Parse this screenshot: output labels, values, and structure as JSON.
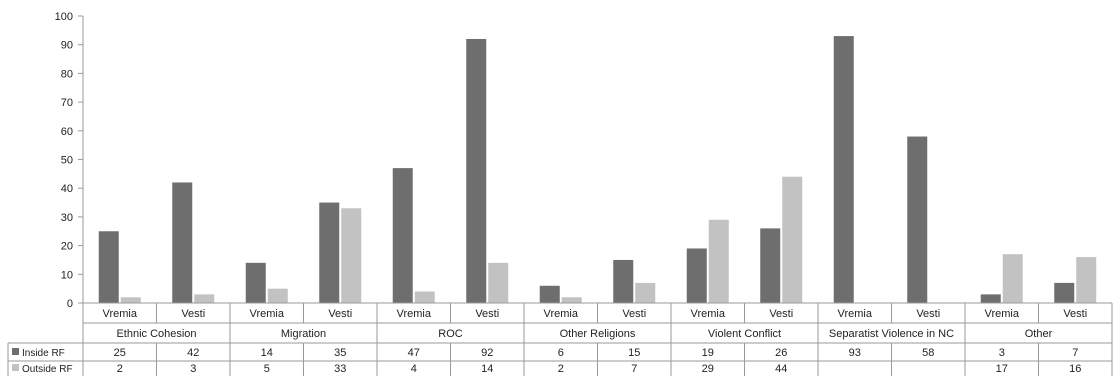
{
  "chart_data": {
    "type": "bar",
    "title": "",
    "xlabel": "",
    "ylabel": "",
    "ylim": [
      0,
      100
    ],
    "yticks": [
      0,
      10,
      20,
      30,
      40,
      50,
      60,
      70,
      80,
      90,
      100
    ],
    "grid": false,
    "legend": "table-rows",
    "groups": [
      {
        "label": "Ethnic Cohesion",
        "categories": [
          "Vremia",
          "Vesti"
        ]
      },
      {
        "label": "Migration",
        "categories": [
          "Vremia",
          "Vesti"
        ]
      },
      {
        "label": "ROC",
        "categories": [
          "Vremia",
          "Vesti"
        ]
      },
      {
        "label": "Other Religions",
        "categories": [
          "Vremia",
          "Vesti"
        ]
      },
      {
        "label": "Violent Conflict",
        "categories": [
          "Vremia",
          "Vesti"
        ]
      },
      {
        "label": "Separatist Violence in NC",
        "categories": [
          "Vremia",
          "Vesti"
        ]
      },
      {
        "label": "Other",
        "categories": [
          "Vremia",
          "Vesti"
        ]
      }
    ],
    "series": [
      {
        "name": "Inside RF",
        "color": "#6e6e6e",
        "values": [
          25,
          42,
          14,
          35,
          47,
          92,
          6,
          15,
          19,
          26,
          93,
          58,
          3,
          7
        ]
      },
      {
        "name": "Outside RF",
        "color": "#c2c2c2",
        "values": [
          2,
          3,
          5,
          33,
          4,
          14,
          2,
          7,
          29,
          44,
          null,
          null,
          17,
          16
        ]
      }
    ]
  }
}
